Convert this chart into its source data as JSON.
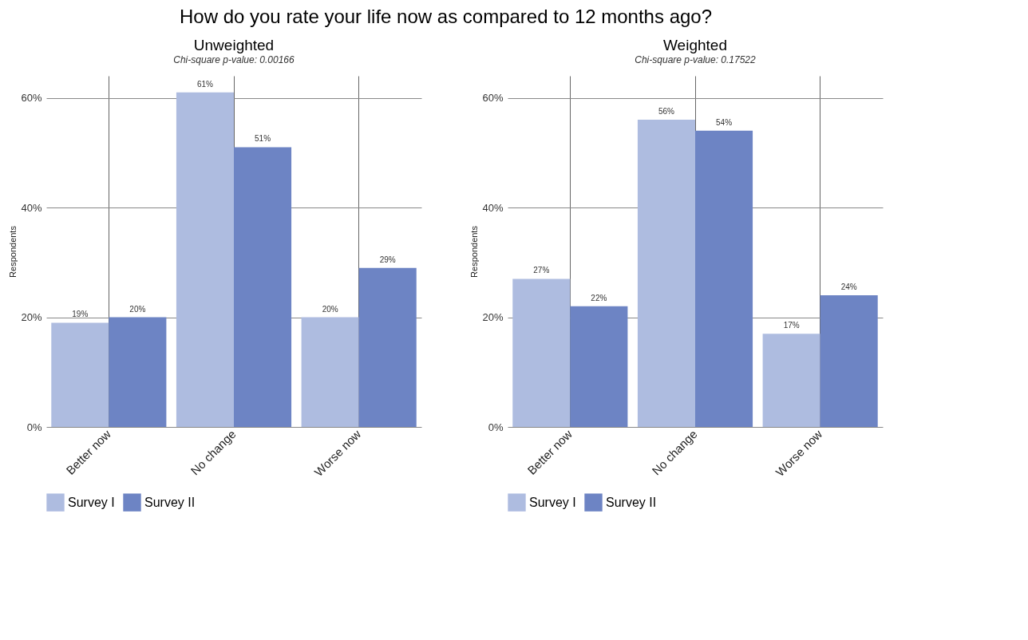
{
  "chart_data": [
    {
      "type": "bar",
      "title": "Unweighted",
      "subtitle": "Chi-square p-value:  0.00166",
      "annotations": [
        "How do you rate your life now as compared to 12 months ago?"
      ],
      "ylabel": "Respondents",
      "categories": [
        "Better now",
        "No change",
        "Worse now"
      ],
      "series": [
        {
          "name": "Survey I",
          "color": "#aebce0",
          "values": [
            19,
            61,
            20
          ],
          "value_labels": [
            "19%",
            "61%",
            "20%"
          ]
        },
        {
          "name": "Survey II",
          "color": "#6d84c4",
          "values": [
            20,
            51,
            29
          ],
          "value_labels": [
            "20%",
            "51%",
            "29%"
          ]
        }
      ],
      "ylim": [
        0,
        64
      ],
      "yticks": [
        {
          "value": 0,
          "label": "0%"
        },
        {
          "value": 20,
          "label": "20%"
        },
        {
          "value": 40,
          "label": "40%"
        },
        {
          "value": 60,
          "label": "60%"
        }
      ],
      "grid": true,
      "legend": "bottom"
    },
    {
      "type": "bar",
      "title": "Weighted",
      "subtitle": "Chi-square p-value:  0.17522",
      "ylabel": "Respondents",
      "categories": [
        "Better now",
        "No change",
        "Worse now"
      ],
      "series": [
        {
          "name": "Survey I",
          "color": "#aebce0",
          "values": [
            27,
            56,
            17
          ],
          "value_labels": [
            "27%",
            "56%",
            "17%"
          ]
        },
        {
          "name": "Survey II",
          "color": "#6d84c4",
          "values": [
            22,
            54,
            24
          ],
          "value_labels": [
            "22%",
            "54%",
            "24%"
          ]
        }
      ],
      "ylim": [
        0,
        64
      ],
      "yticks": [
        {
          "value": 0,
          "label": "0%"
        },
        {
          "value": 20,
          "label": "20%"
        },
        {
          "value": 40,
          "label": "40%"
        },
        {
          "value": 60,
          "label": "60%"
        }
      ],
      "grid": true,
      "legend": "bottom"
    }
  ]
}
